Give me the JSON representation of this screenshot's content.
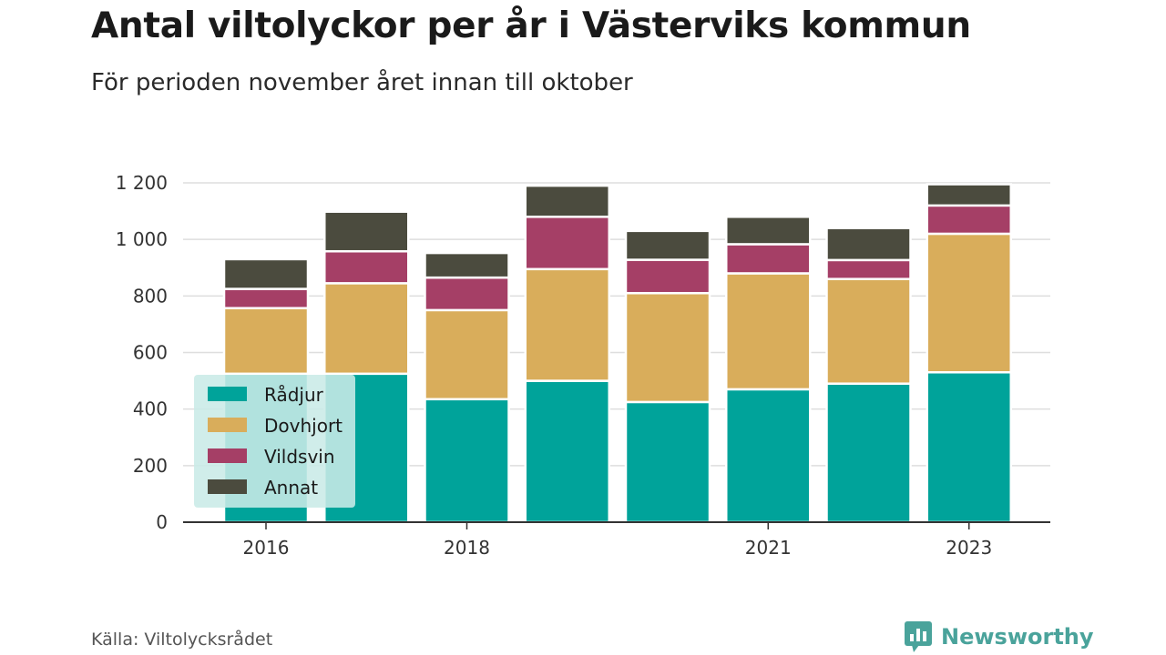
{
  "title": "Antal viltolyckor per år i Västerviks kommun",
  "subtitle": "För perioden november året innan till oktober",
  "source": "Källa: Viltolycksrådet",
  "brand": "Newsworthy",
  "chart_data": {
    "type": "bar",
    "stacked": true,
    "categories": [
      "2016",
      "2017",
      "2018",
      "2019",
      "2020",
      "2021",
      "2022",
      "2023"
    ],
    "x_tick_labels": [
      "2016",
      "",
      "2018",
      "",
      "",
      "2021",
      "",
      "2023"
    ],
    "series": [
      {
        "name": "Rådjur",
        "color": "#00a39a",
        "values": [
          525,
          525,
          435,
          500,
          425,
          470,
          490,
          530
        ]
      },
      {
        "name": "Dovhjort",
        "color": "#d9ad5b",
        "values": [
          232,
          320,
          315,
          395,
          385,
          410,
          370,
          490
        ]
      },
      {
        "name": "Vildsvin",
        "color": "#a53f66",
        "values": [
          68,
          113,
          115,
          185,
          118,
          103,
          67,
          100
        ]
      },
      {
        "name": "Annat",
        "color": "#4b4b3e",
        "values": [
          105,
          140,
          87,
          110,
          102,
          97,
          113,
          75
        ]
      }
    ],
    "ylim": [
      0,
      1200
    ],
    "yticks": [
      0,
      200,
      400,
      600,
      800,
      1000,
      1200
    ],
    "ytick_labels": [
      "0",
      "200",
      "400",
      "600",
      "800",
      "1 000",
      "1 200"
    ],
    "grid": true,
    "legend_position": "bottom-left"
  }
}
